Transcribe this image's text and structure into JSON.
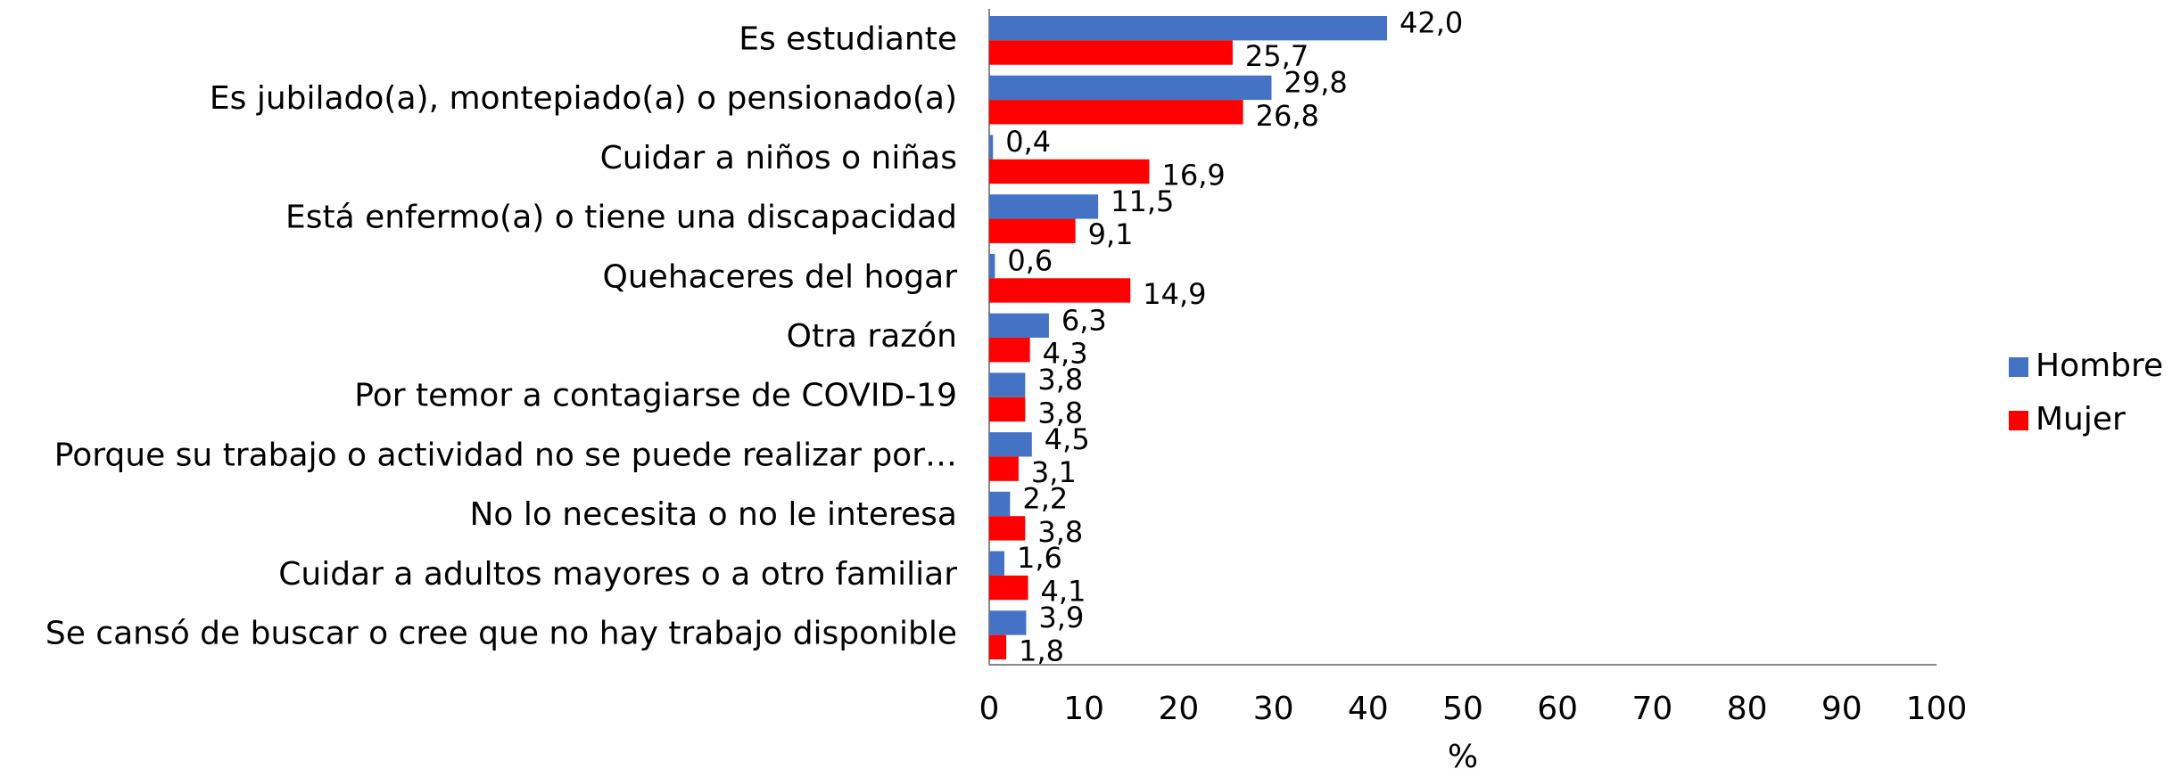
{
  "chart_data": {
    "type": "hbar",
    "categories": [
      "Es estudiante",
      "Es jubilado(a), montepiado(a) o pensionado(a)",
      "Cuidar a niños o niñas",
      "Está enfermo(a) o tiene una discapacidad",
      "Quehaceres del hogar",
      "Otra razón",
      "Por temor a contagiarse de COVID-19",
      "Porque su trabajo o actividad no se puede realizar por…",
      "No lo necesita o no le interesa",
      "Cuidar a adultos mayores o a otro familiar",
      "Se cansó de buscar o cree que no hay trabajo disponible"
    ],
    "series": [
      {
        "name": "Hombre",
        "color": "#4472c4",
        "values": [
          42.0,
          29.8,
          0.4,
          11.5,
          0.6,
          6.3,
          3.8,
          4.5,
          2.2,
          1.6,
          3.9
        ],
        "value_labels": [
          "42,0",
          "29,8",
          "0,4",
          "11,5",
          "0,6",
          "6,3",
          "3,8",
          "4,5",
          "2,2",
          "1,6",
          "3,9"
        ]
      },
      {
        "name": "Mujer",
        "color": "#ff0000",
        "values": [
          25.7,
          26.8,
          16.9,
          9.1,
          14.9,
          4.3,
          3.8,
          3.1,
          3.8,
          4.1,
          1.8
        ],
        "value_labels": [
          "25,7",
          "26,8",
          "16,9",
          "9,1",
          "14,9",
          "4,3",
          "3,8",
          "3,1",
          "3,8",
          "4,1",
          "1,8"
        ]
      }
    ],
    "xlabel": "%",
    "xlim": [
      0,
      100
    ],
    "xticks": [
      0,
      10,
      20,
      30,
      40,
      50,
      60,
      70,
      80,
      90,
      100
    ],
    "legend": "right"
  }
}
